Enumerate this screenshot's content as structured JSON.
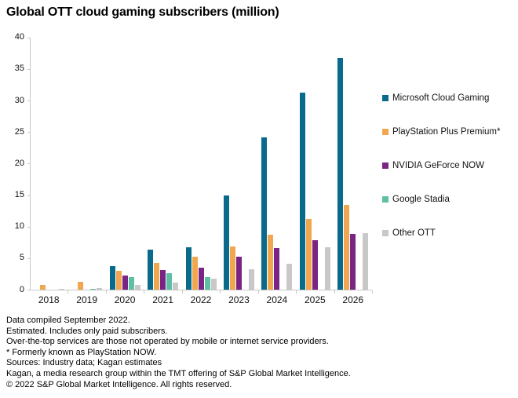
{
  "title": "Global OTT cloud gaming subscribers (million)",
  "chart_data": {
    "type": "bar",
    "title": "Global OTT cloud gaming subscribers (million)",
    "categories": [
      "2018",
      "2019",
      "2020",
      "2021",
      "2022",
      "2023",
      "2024",
      "2025",
      "2026"
    ],
    "series": [
      {
        "name": "Microsoft Cloud Gaming",
        "color": "#0A6A8C",
        "values": [
          0,
          0,
          3.7,
          6.3,
          6.7,
          14.9,
          24.1,
          31.2,
          36.7
        ]
      },
      {
        "name": "PlayStation Plus Premium*",
        "color": "#F0A750",
        "values": [
          0.7,
          1.2,
          3.0,
          4.2,
          5.2,
          6.8,
          8.7,
          11.2,
          13.4
        ]
      },
      {
        "name": "NVIDIA GeForce NOW",
        "color": "#7A2483",
        "values": [
          0,
          0,
          2.3,
          3.1,
          3.5,
          5.2,
          6.6,
          7.9,
          8.9
        ]
      },
      {
        "name": "Google Stadia",
        "color": "#5FBFA5",
        "values": [
          0,
          0.1,
          2.0,
          2.6,
          2.0,
          0,
          0,
          0,
          0
        ]
      },
      {
        "name": "Other OTT",
        "color": "#C8C8C8",
        "values": [
          0.15,
          0.25,
          0.7,
          1.1,
          1.8,
          3.3,
          4.1,
          6.7,
          9.0
        ]
      }
    ],
    "xlabel": "",
    "ylabel": "",
    "ylim": [
      0,
      40
    ],
    "ytick_step": 5,
    "grid": false,
    "legend_position": "right",
    "axis_color": "#C9C9C9"
  },
  "footnotes": [
    "Data compiled September 2022.",
    "Estimated. Includes only paid subscribers.",
    "Over-the-top services are those not operated by mobile or internet service providers.",
    "* Formerly known as PlayStation NOW.",
    "Sources: Industry data; Kagan estimates",
    "Kagan, a media research group within the TMT offering of S&P Global Market Intelligence.",
    "© 2022 S&P Global Market Intelligence. All rights reserved."
  ]
}
